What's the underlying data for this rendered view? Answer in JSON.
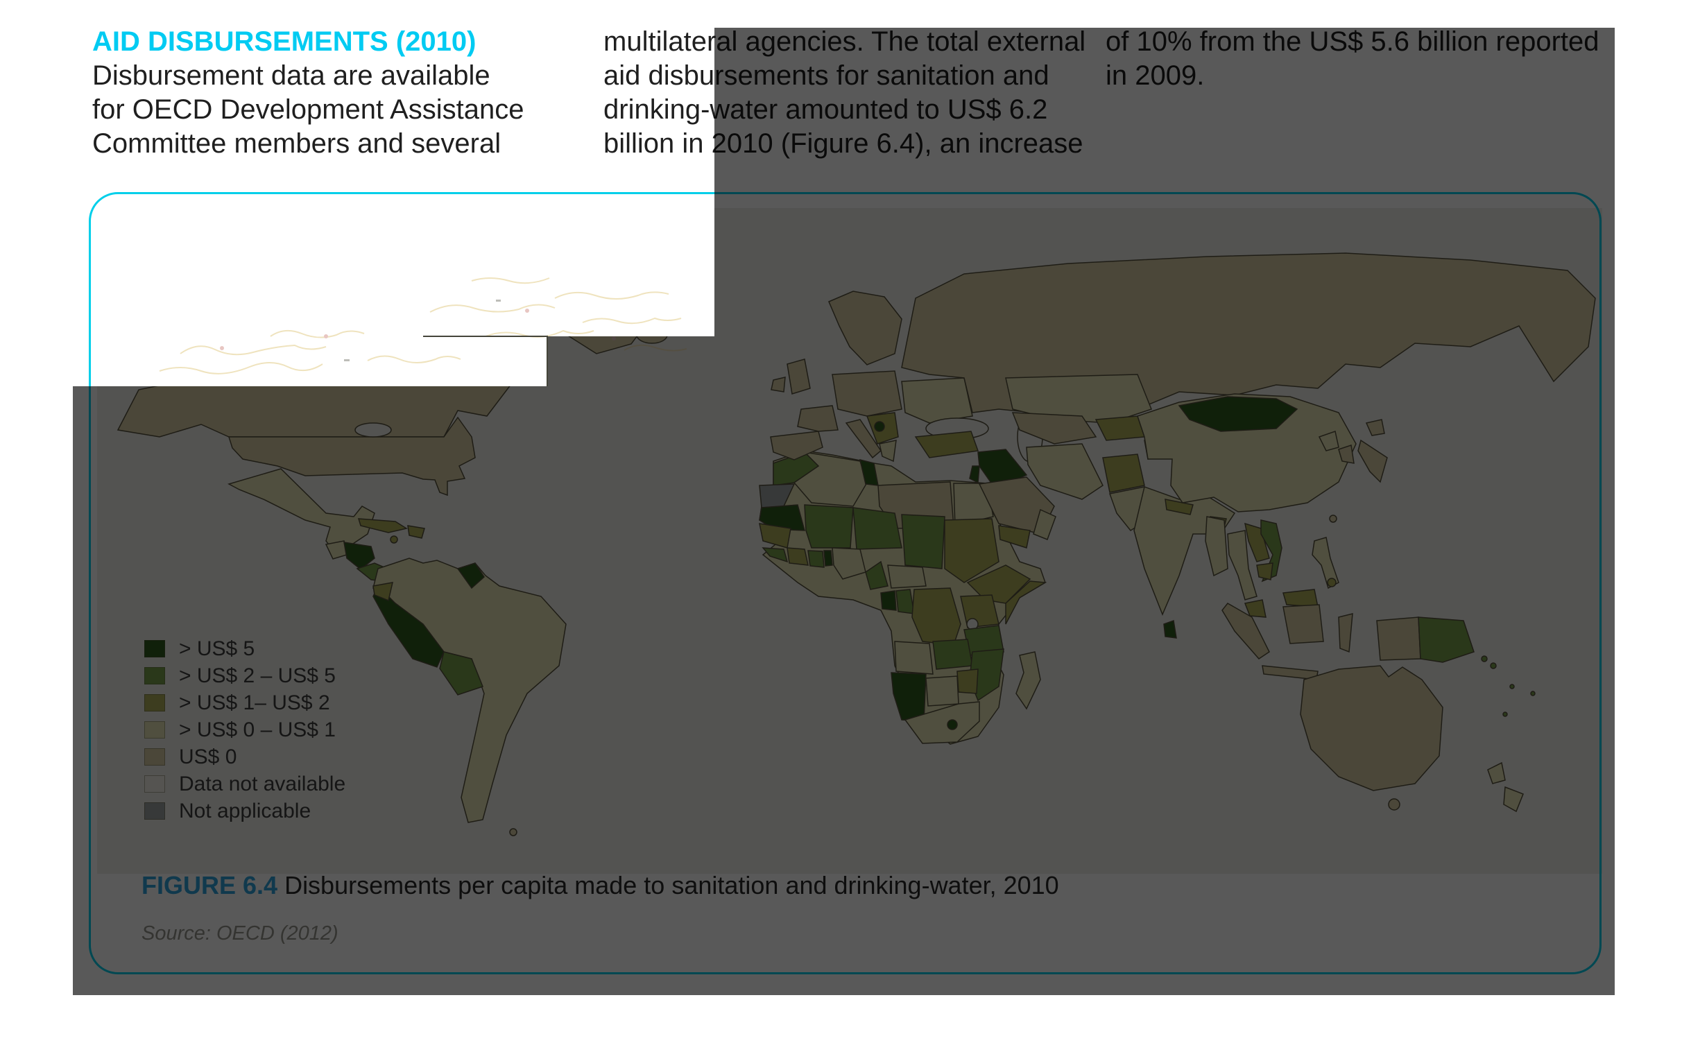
{
  "columns": [
    {
      "heading": "AID DISBURSEMENTS (2010)",
      "lines": [
        "Disbursement data are available",
        "for OECD Development Assistance",
        "Committee members and several"
      ]
    },
    {
      "lines": [
        "multilateral agencies. The total external",
        "aid disbursements for sanitation and",
        "drinking-water amounted to US$ 6.2",
        "billion in 2010 (Figure 6.4), an increase"
      ]
    },
    {
      "lines": [
        "of 10% from the US$ 5.6 billion reported",
        "in 2009."
      ]
    }
  ],
  "figure": {
    "label": "FIGURE 6.4",
    "caption": " Disbursements per capita made to sanitation and drinking-water, 2010",
    "source": "Source: OECD (2012)"
  },
  "colors": {
    "heading_cyan": "#00cbf2",
    "border_cyan": "#00cfea",
    "figure_label": "#2fa3dc",
    "ocean": "#edeee8",
    "outline": "#56523e"
  },
  "chart_data": {
    "type": "choropleth",
    "title": "Disbursements per capita made to sanitation and drinking-water, 2010",
    "source": "OECD (2012)",
    "legend_position": "bottom-left",
    "ocean_color": "#edeee8",
    "legend": [
      {
        "key": "gt5",
        "label": "> US$ 5",
        "color": "#2e5c1e"
      },
      {
        "key": "2to5",
        "label": "> US$ 2 – US$ 5",
        "color": "#78a04a"
      },
      {
        "key": "1to2",
        "label": "> US$ 1– US$ 2",
        "color": "#aeb05a"
      },
      {
        "key": "0to1",
        "label": "> US$ 0 – US$ 1",
        "color": "#e5e3b4"
      },
      {
        "key": "zero",
        "label": "US$ 0",
        "color": "#d6cca4"
      },
      {
        "key": "nodata",
        "label": "Data not available",
        "color": "#f2f1e9"
      },
      {
        "key": "na",
        "label": "Not applicable",
        "color": "#9fa3a3"
      }
    ],
    "regions": [
      {
        "name": "canada",
        "category": "zero"
      },
      {
        "name": "usa",
        "category": "zero"
      },
      {
        "name": "greenland",
        "category": "zero"
      },
      {
        "name": "iceland",
        "category": "zero"
      },
      {
        "name": "mexico",
        "category": "0to1"
      },
      {
        "name": "guatemala",
        "category": "0to1"
      },
      {
        "name": "nicaragua-honduras",
        "category": "gt5"
      },
      {
        "name": "costa-panama",
        "category": "2to5"
      },
      {
        "name": "cuba",
        "category": "1to2"
      },
      {
        "name": "hispaniola",
        "category": "1to2"
      },
      {
        "name": "jamaica",
        "category": "1to2"
      },
      {
        "name": "south-america-base",
        "category": "0to1"
      },
      {
        "name": "peru",
        "category": "gt5"
      },
      {
        "name": "bolivia",
        "category": "2to5"
      },
      {
        "name": "guyana",
        "category": "gt5"
      },
      {
        "name": "ecuador",
        "category": "1to2"
      },
      {
        "name": "falklands",
        "category": "zero"
      },
      {
        "name": "africa-base",
        "category": "0to1"
      },
      {
        "name": "morocco",
        "category": "2to5"
      },
      {
        "name": "wsahara",
        "category": "na"
      },
      {
        "name": "mauritania",
        "category": "gt5"
      },
      {
        "name": "algeria",
        "category": "0to1"
      },
      {
        "name": "tunisia",
        "category": "gt5"
      },
      {
        "name": "libya",
        "category": "zero"
      },
      {
        "name": "egypt",
        "category": "0to1"
      },
      {
        "name": "mali",
        "category": "2to5"
      },
      {
        "name": "niger",
        "category": "2to5"
      },
      {
        "name": "chad",
        "category": "2to5"
      },
      {
        "name": "sudan",
        "category": "1to2"
      },
      {
        "name": "ethiopia",
        "category": "1to2"
      },
      {
        "name": "somalia",
        "category": "1to2"
      },
      {
        "name": "senegal-guinea",
        "category": "1to2"
      },
      {
        "name": "sierra-liberia",
        "category": "2to5"
      },
      {
        "name": "cote-divoire",
        "category": "1to2"
      },
      {
        "name": "ghana",
        "category": "2to5"
      },
      {
        "name": "benin-togo",
        "category": "gt5"
      },
      {
        "name": "nigeria",
        "category": "0to1"
      },
      {
        "name": "cameroon",
        "category": "2to5"
      },
      {
        "name": "car",
        "category": "0to1"
      },
      {
        "name": "gabon",
        "category": "gt5"
      },
      {
        "name": "congo",
        "category": "2to5"
      },
      {
        "name": "drc",
        "category": "1to2"
      },
      {
        "name": "uganda-kenya",
        "category": "1to2"
      },
      {
        "name": "tanzania",
        "category": "2to5"
      },
      {
        "name": "angola",
        "category": "0to1"
      },
      {
        "name": "zambia",
        "category": "2to5"
      },
      {
        "name": "malawi-mozambique",
        "category": "2to5"
      },
      {
        "name": "zimbabwe",
        "category": "1to2"
      },
      {
        "name": "namibia",
        "category": "gt5"
      },
      {
        "name": "botswana",
        "category": "0to1"
      },
      {
        "name": "south-africa",
        "category": "0to1"
      },
      {
        "name": "lesotho",
        "category": "gt5"
      },
      {
        "name": "madagascar",
        "category": "0to1"
      },
      {
        "name": "iberia",
        "category": "zero"
      },
      {
        "name": "france",
        "category": "zero"
      },
      {
        "name": "uk",
        "category": "zero"
      },
      {
        "name": "ireland",
        "category": "zero"
      },
      {
        "name": "central-europe",
        "category": "zero"
      },
      {
        "name": "italy",
        "category": "zero"
      },
      {
        "name": "balkans",
        "category": "1to2"
      },
      {
        "name": "balkan-dark",
        "category": "gt5"
      },
      {
        "name": "greece",
        "category": "0to1"
      },
      {
        "name": "scandinavia",
        "category": "zero"
      },
      {
        "name": "ukraine",
        "category": "0to1"
      },
      {
        "name": "russia",
        "category": "zero"
      },
      {
        "name": "turkey",
        "category": "1to2"
      },
      {
        "name": "syria-iraq",
        "category": "gt5"
      },
      {
        "name": "jordan-israel",
        "category": "gt5"
      },
      {
        "name": "saudi",
        "category": "zero"
      },
      {
        "name": "yemen",
        "category": "1to2"
      },
      {
        "name": "oman",
        "category": "0to1"
      },
      {
        "name": "iran",
        "category": "0to1"
      },
      {
        "name": "afghanistan",
        "category": "1to2"
      },
      {
        "name": "pakistan",
        "category": "0to1"
      },
      {
        "name": "india",
        "category": "0to1"
      },
      {
        "name": "sri-lanka",
        "category": "gt5"
      },
      {
        "name": "nepal",
        "category": "1to2"
      },
      {
        "name": "bangladesh",
        "category": "1to2"
      },
      {
        "name": "kazakhstan",
        "category": "0to1"
      },
      {
        "name": "uzbek-turkmen",
        "category": "zero"
      },
      {
        "name": "kyrgyz-tajik",
        "category": "1to2"
      },
      {
        "name": "kashmir",
        "category": "na"
      },
      {
        "name": "china",
        "category": "0to1"
      },
      {
        "name": "mongolia",
        "category": "gt5"
      },
      {
        "name": "nkorea",
        "category": "0to1"
      },
      {
        "name": "skorea",
        "category": "zero"
      },
      {
        "name": "japan",
        "category": "zero"
      },
      {
        "name": "myanmar",
        "category": "0to1"
      },
      {
        "name": "thailand",
        "category": "0to1"
      },
      {
        "name": "laos",
        "category": "1to2"
      },
      {
        "name": "vietnam",
        "category": "2to5"
      },
      {
        "name": "cambodia",
        "category": "1to2"
      },
      {
        "name": "malaysia",
        "category": "1to2"
      },
      {
        "name": "borneo-my",
        "category": "1to2"
      },
      {
        "name": "sumatra",
        "category": "zero"
      },
      {
        "name": "java",
        "category": "zero"
      },
      {
        "name": "borneo-id",
        "category": "zero"
      },
      {
        "name": "sulawesi",
        "category": "zero"
      },
      {
        "name": "papua-id",
        "category": "zero"
      },
      {
        "name": "png",
        "category": "2to5"
      },
      {
        "name": "solomon1",
        "category": "2to5"
      },
      {
        "name": "solomon2",
        "category": "2to5"
      },
      {
        "name": "philippines",
        "category": "0to1"
      },
      {
        "name": "philippines-bit",
        "category": "1to2"
      },
      {
        "name": "taiwan",
        "category": "zero"
      },
      {
        "name": "australia",
        "category": "zero"
      },
      {
        "name": "tasmania",
        "category": "zero"
      },
      {
        "name": "nz-north",
        "category": "0to1"
      },
      {
        "name": "nz-south",
        "category": "0to1"
      },
      {
        "name": "fiji",
        "category": "2to5"
      },
      {
        "name": "vanuatu",
        "category": "2to5"
      },
      {
        "name": "caledonia",
        "category": "2to5"
      }
    ]
  }
}
